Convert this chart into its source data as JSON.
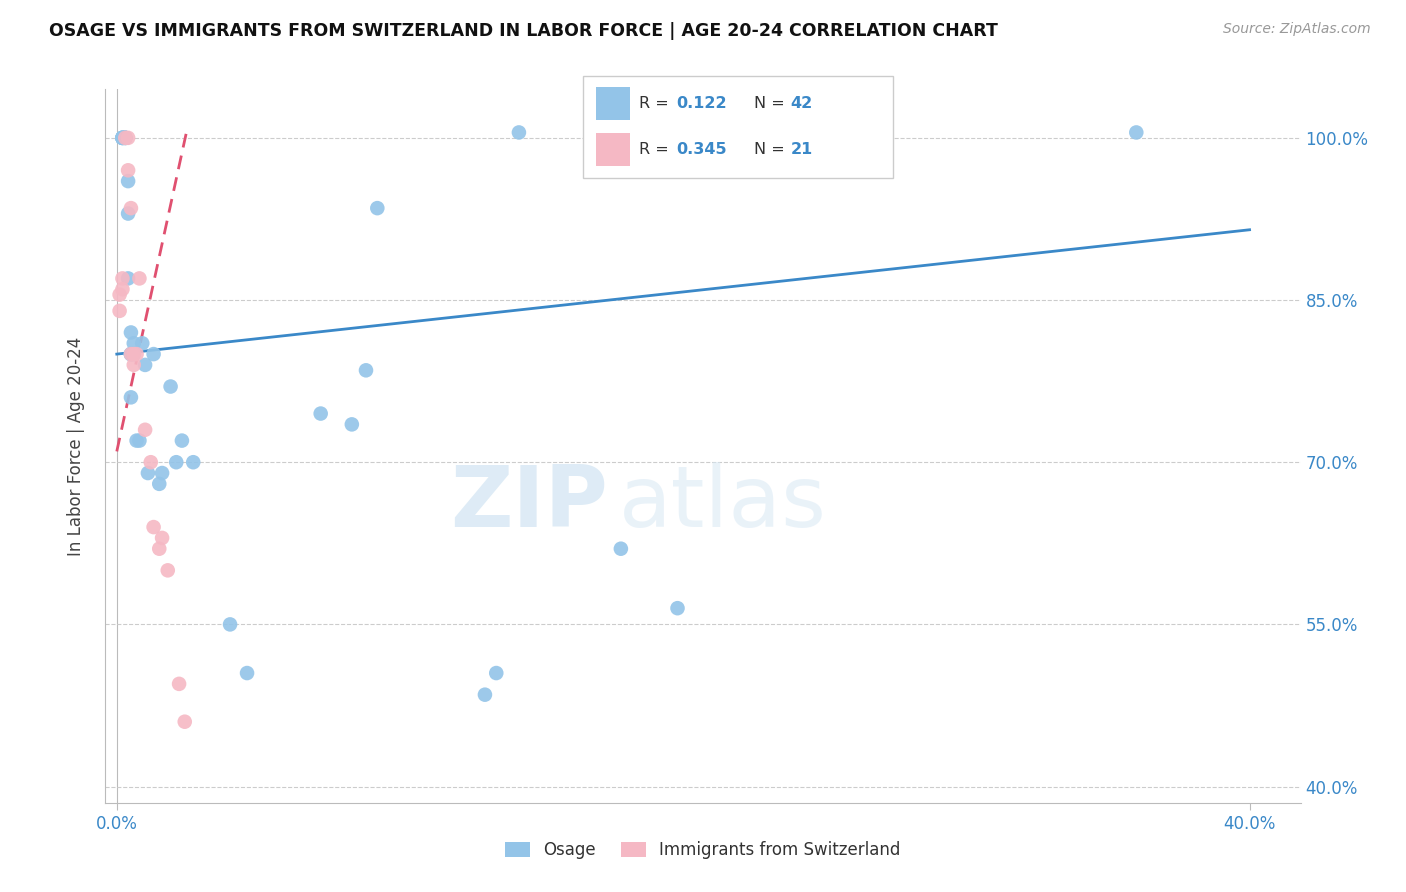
{
  "title": "OSAGE VS IMMIGRANTS FROM SWITZERLAND IN LABOR FORCE | AGE 20-24 CORRELATION CHART",
  "source": "Source: ZipAtlas.com",
  "ylabel": "In Labor Force | Age 20-24",
  "xmin": -0.004,
  "xmax": 0.418,
  "ymin": 0.385,
  "ymax": 1.045,
  "x_ticks": [
    0.0,
    0.4
  ],
  "x_tick_labels": [
    "0.0%",
    "40.0%"
  ],
  "y_ticks": [
    0.4,
    0.55,
    0.7,
    0.85,
    1.0
  ],
  "y_tick_labels": [
    "40.0%",
    "55.0%",
    "70.0%",
    "85.0%",
    "100.0%"
  ],
  "legend_blue_r": "0.122",
  "legend_blue_n": "42",
  "legend_pink_r": "0.345",
  "legend_pink_n": "21",
  "legend_blue_label": "Osage",
  "legend_pink_label": "Immigrants from Switzerland",
  "blue_color": "#93c4e8",
  "pink_color": "#f5b8c4",
  "blue_line_color": "#3a88c8",
  "pink_line_color": "#e05070",
  "watermark_zip": "ZIP",
  "watermark_atlas": "atlas",
  "osage_x": [
    0.002,
    0.002,
    0.002,
    0.002,
    0.002,
    0.003,
    0.003,
    0.003,
    0.003,
    0.004,
    0.004,
    0.004,
    0.005,
    0.005,
    0.005,
    0.005,
    0.006,
    0.006,
    0.007,
    0.008,
    0.009,
    0.01,
    0.011,
    0.013,
    0.015,
    0.016,
    0.019,
    0.021,
    0.023,
    0.027,
    0.04,
    0.046,
    0.072,
    0.083,
    0.088,
    0.092,
    0.13,
    0.134,
    0.142,
    0.178,
    0.198,
    0.36
  ],
  "osage_y": [
    1.0,
    1.0,
    1.0,
    1.0,
    1.0,
    1.0,
    1.0,
    1.0,
    1.0,
    0.96,
    0.93,
    0.87,
    0.8,
    0.8,
    0.82,
    0.76,
    0.81,
    0.8,
    0.72,
    0.72,
    0.81,
    0.79,
    0.69,
    0.8,
    0.68,
    0.69,
    0.77,
    0.7,
    0.72,
    0.7,
    0.55,
    0.505,
    0.745,
    0.735,
    0.785,
    0.935,
    0.485,
    0.505,
    1.005,
    0.62,
    0.565,
    1.005
  ],
  "swiss_x": [
    0.001,
    0.001,
    0.002,
    0.002,
    0.003,
    0.004,
    0.004,
    0.005,
    0.005,
    0.006,
    0.006,
    0.007,
    0.008,
    0.01,
    0.012,
    0.013,
    0.015,
    0.016,
    0.018,
    0.022,
    0.024
  ],
  "swiss_y": [
    0.855,
    0.84,
    0.87,
    0.86,
    1.0,
    1.0,
    0.97,
    0.935,
    0.8,
    0.79,
    0.8,
    0.8,
    0.87,
    0.73,
    0.7,
    0.64,
    0.62,
    0.63,
    0.6,
    0.495,
    0.46
  ],
  "blue_line_x0": 0.0,
  "blue_line_y0": 0.8,
  "blue_line_x1": 0.4,
  "blue_line_y1": 0.915,
  "pink_line_x0": 0.0,
  "pink_line_y0": 0.71,
  "pink_line_x1": 0.025,
  "pink_line_y1": 1.01
}
